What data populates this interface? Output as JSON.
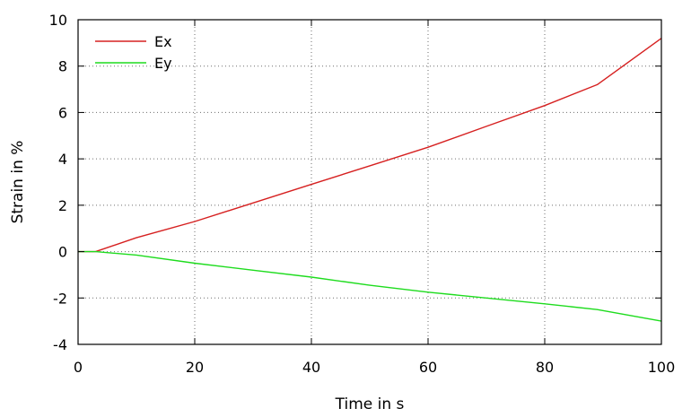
{
  "chart_data": {
    "type": "line",
    "xlabel": "Time in s",
    "ylabel": "Strain in %",
    "xlim": [
      0,
      100
    ],
    "ylim": [
      -4,
      10
    ],
    "xticks": [
      0,
      20,
      40,
      60,
      80,
      100
    ],
    "xtick_labels": [
      "0",
      "20",
      "40",
      "60",
      "80",
      "100"
    ],
    "yticks": [
      -4,
      -2,
      0,
      2,
      4,
      6,
      8,
      10
    ],
    "ytick_labels": [
      "-4",
      "-2",
      "0",
      "2",
      "4",
      "6",
      "8",
      "10"
    ],
    "grid": true,
    "legend_position": "top-left",
    "series": [
      {
        "name": "Ex",
        "color": "#d62020",
        "x": [
          0,
          3,
          10,
          20,
          30,
          40,
          50,
          60,
          70,
          80,
          89,
          100
        ],
        "y": [
          0,
          0,
          0.6,
          1.3,
          2.1,
          2.9,
          3.7,
          4.5,
          5.4,
          6.3,
          7.2,
          9.2
        ]
      },
      {
        "name": "Ey",
        "color": "#1edc1e",
        "x": [
          0,
          3,
          10,
          20,
          30,
          40,
          50,
          60,
          70,
          80,
          89,
          100
        ],
        "y": [
          0,
          0,
          -0.15,
          -0.5,
          -0.8,
          -1.1,
          -1.45,
          -1.75,
          -2.0,
          -2.25,
          -2.5,
          -3.0
        ]
      }
    ]
  }
}
